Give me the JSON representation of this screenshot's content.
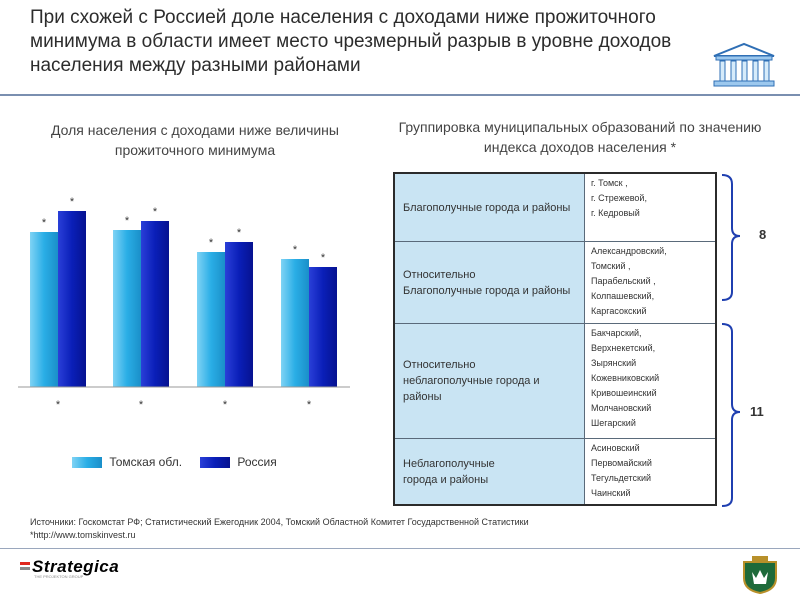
{
  "title": "При схожей с Россией доле населения с доходами ниже прожиточного минимума в области имеет место чрезмерный разрыв в уровне доходов населения между разными районами",
  "colors": {
    "tomsk": "#2aaee6",
    "russia": "#0a1fb8",
    "header_rule": "#7a8fb0",
    "table_cell": "#c9e4f3"
  },
  "chart_data": {
    "type": "bar",
    "title": "Доля населения с доходами ниже величины прожиточного минимума",
    "categories": [
      "*",
      "*",
      "*",
      "*"
    ],
    "series": [
      {
        "name": "Томская обл.",
        "values": [
          155,
          157,
          135,
          128
        ]
      },
      {
        "name": "Россия",
        "values": [
          176,
          166,
          145,
          120
        ]
      }
    ],
    "bar_markers": "*",
    "ylim": [
      0,
      200
    ],
    "legend": "bottom",
    "grid": false
  },
  "table": {
    "title": "Группировка муниципальных образований по значению индекса доходов населения *",
    "rows": [
      {
        "category": "Благополучные   города и районы",
        "items": [
          "г. Томск ,",
          "г. Стрежевой,",
          "г. Кедровый"
        ]
      },
      {
        "category": "Относительно\nБлагополучные   города и районы",
        "items": [
          "Александровский,",
          "Томский ,",
          "Парабельский ,",
          "Колпашевский,",
          "Каргасокский"
        ]
      },
      {
        "category": "Относительно\nнеблагополучные   города и районы",
        "items": [
          "Бакчарский,",
          "Верхнекетский,",
          "Зырянский",
          "Кожевниковский",
          "Кривошеинский",
          "Молчановский",
          "Шегарский"
        ]
      },
      {
        "category": "Неблагополучные\nгорода и районы",
        "items": [
          "Асиновский",
          "Первомайский",
          "Тегульдетский",
          "Чаинский"
        ]
      }
    ],
    "group_counts": [
      "8",
      "11"
    ]
  },
  "sources": "Источники: Госкомстат РФ; Статистический Ежегодник 2004, Томский Областной Комитет Государственной Статистики",
  "footnote": "*http://www.tomskinvest.ru",
  "logo": {
    "name": "Strategica",
    "tagline": "THE PROJEKTON GROUP"
  },
  "icons": [
    "building-icon",
    "regional-emblem-icon"
  ]
}
